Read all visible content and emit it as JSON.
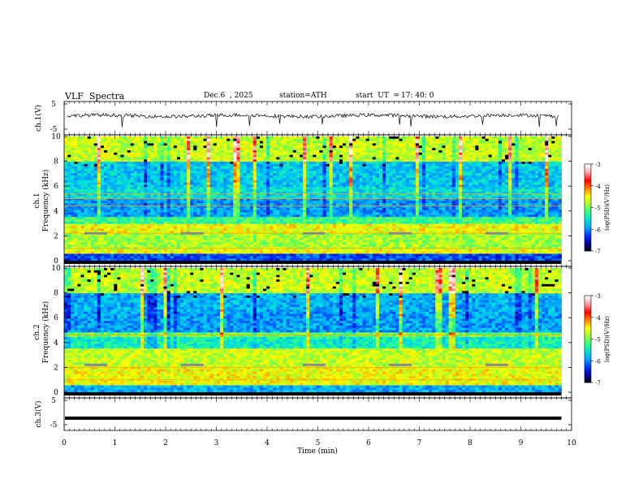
{
  "header": {
    "title": "VLF  Spectra",
    "date": "Dec.6  , 2025",
    "station": "station=ATH",
    "start_label": "start  UT  =",
    "start_time": "17: 40: 0"
  },
  "colors": {
    "spectrogram_scale": [
      "#000000",
      "#0000a0",
      "#0030ff",
      "#00a0ff",
      "#00e0e0",
      "#30ff80",
      "#a0ff30",
      "#ffff00",
      "#ff8000",
      "#ff0000",
      "#ffa0a0",
      "#ffffff"
    ],
    "trace": "#000000"
  },
  "chart_data": [
    {
      "type": "line",
      "panel": "ch1-waveform",
      "ylabel": "ch.1(V)",
      "ylim": [
        -5,
        5
      ],
      "yticks": [
        "5",
        "-5"
      ],
      "xlim": [
        0,
        10
      ],
      "description_values": "noisy waveform near +0.3 V with spiky dips"
    },
    {
      "type": "heatmap",
      "panel": "ch1-spectrogram",
      "ylabel_channel": "ch.1",
      "ylabel": "Frequency  (kHz)",
      "ylim": [
        0,
        10
      ],
      "yticks": [
        "0",
        "2",
        "4",
        "6",
        "8",
        "10"
      ],
      "xlim": [
        0,
        9.8
      ],
      "colorbar": {
        "label": "log(PSD)(V²/Hz)",
        "range": [
          -7,
          -3
        ],
        "ticks": [
          "-3",
          "-4",
          "-5",
          "-6",
          "-7"
        ]
      },
      "band_levels": [
        {
          "from": 0,
          "to": 0.5,
          "level": 0.2
        },
        {
          "from": 0.5,
          "to": 1.0,
          "level": 0.62
        },
        {
          "from": 1.0,
          "to": 2.2,
          "level": 0.55
        },
        {
          "from": 2.2,
          "to": 3.0,
          "level": 0.62
        },
        {
          "from": 3.0,
          "to": 3.6,
          "level": 0.45
        },
        {
          "from": 3.6,
          "to": 5.0,
          "level": 0.28
        },
        {
          "from": 5.0,
          "to": 6.0,
          "level": 0.36
        },
        {
          "from": 6.0,
          "to": 8.0,
          "level": 0.33
        },
        {
          "from": 8.0,
          "to": 10.0,
          "level": 0.58
        }
      ],
      "lines_khz": [
        1.0,
        2.2,
        4.4,
        5.0,
        5.4
      ]
    },
    {
      "type": "heatmap",
      "panel": "ch2-spectrogram",
      "ylabel_channel": "ch.2",
      "ylabel": "Frequency  (kHz)",
      "ylim": [
        0,
        10
      ],
      "yticks": [
        "0",
        "2",
        "4",
        "6",
        "8",
        "10"
      ],
      "xlim": [
        0,
        9.8
      ],
      "colorbar": {
        "label": "log(PSD)(V²/Hz)",
        "range": [
          -7,
          -3
        ],
        "ticks": [
          "-3",
          "-4",
          "-5",
          "-6",
          "-7"
        ]
      },
      "band_levels": [
        {
          "from": 0,
          "to": 0.5,
          "level": 0.3
        },
        {
          "from": 0.5,
          "to": 2.0,
          "level": 0.62
        },
        {
          "from": 2.0,
          "to": 3.6,
          "level": 0.58
        },
        {
          "from": 3.6,
          "to": 4.4,
          "level": 0.4
        },
        {
          "from": 4.4,
          "to": 4.8,
          "level": 0.5
        },
        {
          "from": 4.8,
          "to": 6.5,
          "level": 0.28
        },
        {
          "from": 6.5,
          "to": 8.0,
          "level": 0.3
        },
        {
          "from": 8.0,
          "to": 10.0,
          "level": 0.58
        }
      ],
      "lines_khz": [
        1.0,
        2.0,
        4.6
      ]
    },
    {
      "type": "line",
      "panel": "ch3-waveform",
      "ylabel": "ch.3(V)",
      "ylim": [
        -5,
        5
      ],
      "yticks": [
        "5",
        "-5"
      ],
      "xlim": [
        0,
        10
      ],
      "constant_value": -2.3
    }
  ],
  "xaxis": {
    "label": "Time  (min)",
    "ticks": [
      "0",
      "1",
      "2",
      "3",
      "4",
      "5",
      "6",
      "7",
      "8",
      "9",
      "10"
    ]
  }
}
